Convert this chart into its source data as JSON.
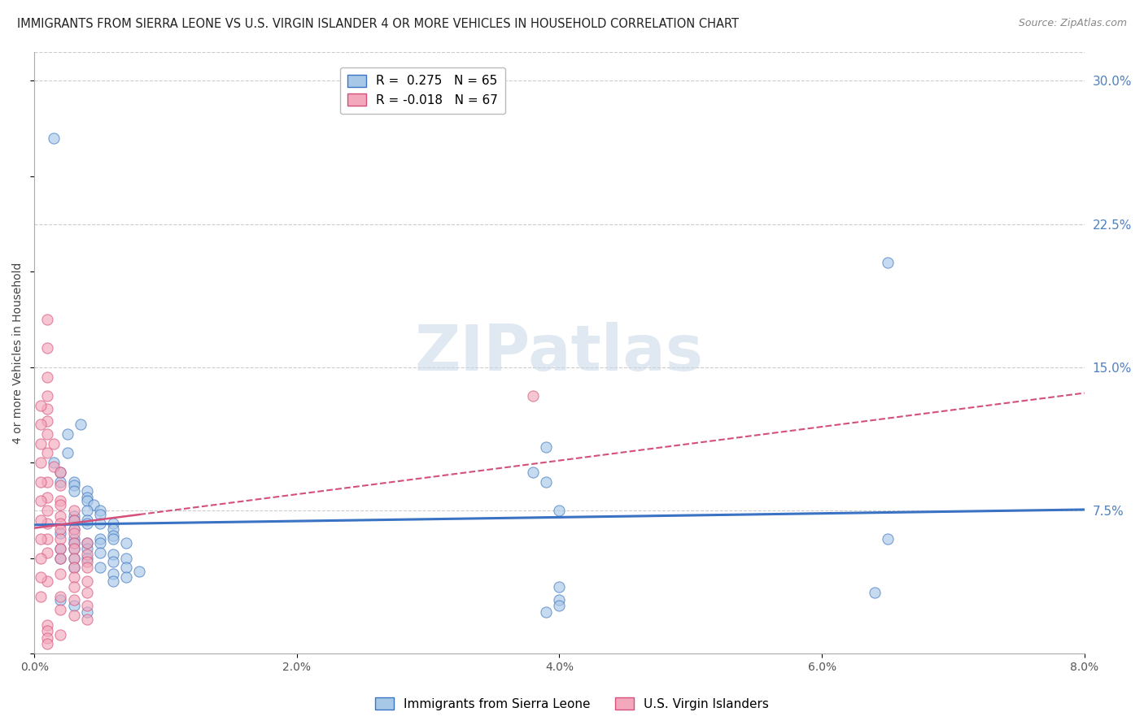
{
  "title": "IMMIGRANTS FROM SIERRA LEONE VS U.S. VIRGIN ISLANDER 4 OR MORE VEHICLES IN HOUSEHOLD CORRELATION CHART",
  "source": "Source: ZipAtlas.com",
  "ylabel": "4 or more Vehicles in Household",
  "legend_blue_label": "Immigrants from Sierra Leone",
  "legend_pink_label": "U.S. Virgin Islanders",
  "R_blue": 0.275,
  "N_blue": 65,
  "R_pink": -0.018,
  "N_pink": 67,
  "xlim": [
    0.0,
    0.08
  ],
  "ylim": [
    0.0,
    0.315
  ],
  "yticks_right": [
    0.075,
    0.15,
    0.225,
    0.3
  ],
  "ytick_labels_right": [
    "7.5%",
    "15.0%",
    "22.5%",
    "30.0%"
  ],
  "xticks": [
    0.0,
    0.02,
    0.04,
    0.06,
    0.08
  ],
  "xtick_labels": [
    "0.0%",
    "2.0%",
    "4.0%",
    "6.0%",
    "8.0%"
  ],
  "watermark": "ZIPatlas",
  "blue_color": "#a8c8e8",
  "pink_color": "#f4a8bc",
  "trend_blue_color": "#3a72c4",
  "trend_pink_color": "#d4507a",
  "blue_scatter": [
    [
      0.0015,
      0.27
    ],
    [
      0.0035,
      0.12
    ],
    [
      0.0025,
      0.115
    ],
    [
      0.0025,
      0.105
    ],
    [
      0.0015,
      0.1
    ],
    [
      0.002,
      0.095
    ],
    [
      0.002,
      0.09
    ],
    [
      0.003,
      0.09
    ],
    [
      0.003,
      0.088
    ],
    [
      0.003,
      0.085
    ],
    [
      0.004,
      0.085
    ],
    [
      0.004,
      0.082
    ],
    [
      0.004,
      0.08
    ],
    [
      0.0045,
      0.078
    ],
    [
      0.004,
      0.075
    ],
    [
      0.005,
      0.075
    ],
    [
      0.005,
      0.073
    ],
    [
      0.003,
      0.072
    ],
    [
      0.003,
      0.07
    ],
    [
      0.004,
      0.07
    ],
    [
      0.005,
      0.068
    ],
    [
      0.006,
      0.068
    ],
    [
      0.004,
      0.068
    ],
    [
      0.006,
      0.065
    ],
    [
      0.003,
      0.065
    ],
    [
      0.002,
      0.063
    ],
    [
      0.006,
      0.062
    ],
    [
      0.005,
      0.06
    ],
    [
      0.003,
      0.06
    ],
    [
      0.006,
      0.06
    ],
    [
      0.003,
      0.058
    ],
    [
      0.004,
      0.058
    ],
    [
      0.005,
      0.058
    ],
    [
      0.007,
      0.058
    ],
    [
      0.002,
      0.055
    ],
    [
      0.004,
      0.055
    ],
    [
      0.003,
      0.055
    ],
    [
      0.005,
      0.053
    ],
    [
      0.006,
      0.052
    ],
    [
      0.002,
      0.05
    ],
    [
      0.003,
      0.05
    ],
    [
      0.007,
      0.05
    ],
    [
      0.004,
      0.05
    ],
    [
      0.006,
      0.048
    ],
    [
      0.007,
      0.045
    ],
    [
      0.005,
      0.045
    ],
    [
      0.003,
      0.045
    ],
    [
      0.008,
      0.043
    ],
    [
      0.006,
      0.042
    ],
    [
      0.007,
      0.04
    ],
    [
      0.006,
      0.038
    ],
    [
      0.039,
      0.108
    ],
    [
      0.038,
      0.095
    ],
    [
      0.039,
      0.09
    ],
    [
      0.04,
      0.075
    ],
    [
      0.04,
      0.035
    ],
    [
      0.04,
      0.028
    ],
    [
      0.04,
      0.025
    ],
    [
      0.039,
      0.022
    ],
    [
      0.065,
      0.205
    ],
    [
      0.065,
      0.06
    ],
    [
      0.064,
      0.032
    ],
    [
      0.002,
      0.028
    ],
    [
      0.003,
      0.025
    ],
    [
      0.004,
      0.022
    ]
  ],
  "pink_scatter": [
    [
      0.001,
      0.175
    ],
    [
      0.001,
      0.16
    ],
    [
      0.001,
      0.145
    ],
    [
      0.001,
      0.135
    ],
    [
      0.001,
      0.128
    ],
    [
      0.001,
      0.122
    ],
    [
      0.001,
      0.115
    ],
    [
      0.0015,
      0.11
    ],
    [
      0.001,
      0.105
    ],
    [
      0.0015,
      0.098
    ],
    [
      0.002,
      0.095
    ],
    [
      0.001,
      0.09
    ],
    [
      0.002,
      0.088
    ],
    [
      0.001,
      0.082
    ],
    [
      0.002,
      0.08
    ],
    [
      0.002,
      0.078
    ],
    [
      0.003,
      0.075
    ],
    [
      0.001,
      0.075
    ],
    [
      0.002,
      0.072
    ],
    [
      0.003,
      0.07
    ],
    [
      0.002,
      0.068
    ],
    [
      0.001,
      0.068
    ],
    [
      0.003,
      0.065
    ],
    [
      0.002,
      0.065
    ],
    [
      0.003,
      0.063
    ],
    [
      0.001,
      0.06
    ],
    [
      0.002,
      0.06
    ],
    [
      0.003,
      0.058
    ],
    [
      0.004,
      0.058
    ],
    [
      0.002,
      0.055
    ],
    [
      0.003,
      0.055
    ],
    [
      0.001,
      0.053
    ],
    [
      0.004,
      0.052
    ],
    [
      0.002,
      0.05
    ],
    [
      0.003,
      0.05
    ],
    [
      0.004,
      0.048
    ],
    [
      0.003,
      0.045
    ],
    [
      0.004,
      0.045
    ],
    [
      0.002,
      0.042
    ],
    [
      0.003,
      0.04
    ],
    [
      0.004,
      0.038
    ],
    [
      0.001,
      0.038
    ],
    [
      0.003,
      0.035
    ],
    [
      0.004,
      0.032
    ],
    [
      0.002,
      0.03
    ],
    [
      0.003,
      0.028
    ],
    [
      0.004,
      0.025
    ],
    [
      0.002,
      0.023
    ],
    [
      0.003,
      0.02
    ],
    [
      0.004,
      0.018
    ],
    [
      0.001,
      0.015
    ],
    [
      0.001,
      0.012
    ],
    [
      0.002,
      0.01
    ],
    [
      0.001,
      0.008
    ],
    [
      0.001,
      0.005
    ],
    [
      0.0005,
      0.13
    ],
    [
      0.0005,
      0.12
    ],
    [
      0.0005,
      0.11
    ],
    [
      0.0005,
      0.1
    ],
    [
      0.0005,
      0.09
    ],
    [
      0.0005,
      0.08
    ],
    [
      0.0005,
      0.07
    ],
    [
      0.0005,
      0.06
    ],
    [
      0.0005,
      0.05
    ],
    [
      0.0005,
      0.04
    ],
    [
      0.0005,
      0.03
    ],
    [
      0.038,
      0.135
    ]
  ],
  "grid_color": "#cccccc",
  "background_color": "#ffffff",
  "title_fontsize": 10.5,
  "axis_label_fontsize": 10,
  "tick_fontsize": 10,
  "legend_fontsize": 11,
  "watermark_fontsize": 56,
  "watermark_color": "#c8d8e8",
  "watermark_alpha": 0.55
}
